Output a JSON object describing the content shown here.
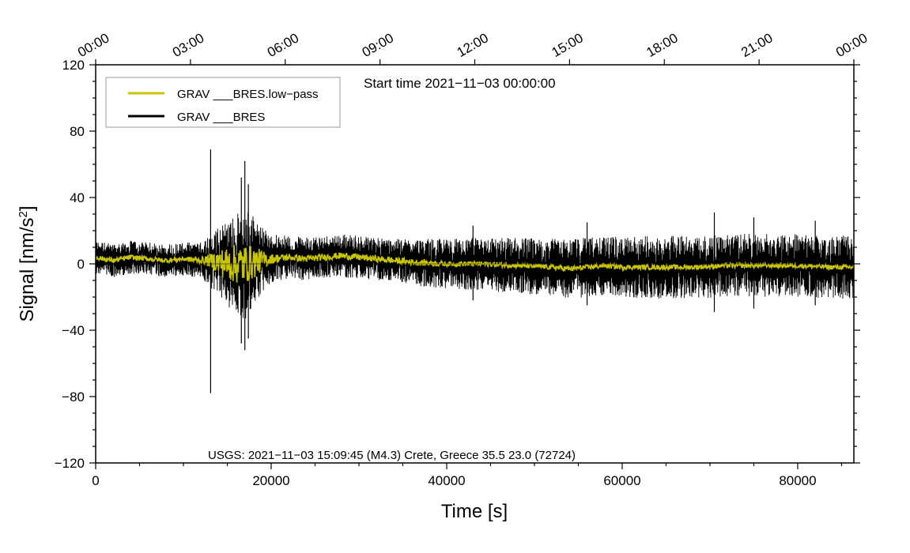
{
  "chart_data": {
    "type": "line",
    "xlabel": "Time [s]",
    "ylabel": "Signal [nm/s",
    "ylabel_superscript": "2",
    "ylabel_close": "]",
    "xlim": [
      0,
      86400
    ],
    "ylim": [
      -120,
      120
    ],
    "x_ticks": [
      "0",
      "20000",
      "40000",
      "60000",
      "80000"
    ],
    "x_tick_values": [
      0,
      20000,
      40000,
      60000,
      80000
    ],
    "x_minor_step": 5000,
    "y_ticks": [
      "120",
      "80",
      "40",
      "0",
      "−40",
      "−80",
      "−120"
    ],
    "y_tick_values": [
      120,
      80,
      40,
      0,
      -40,
      -80,
      -120
    ],
    "y_minor_step": 10,
    "top_ticks": [
      "00:00",
      "03:00",
      "06:00",
      "09:00",
      "12:00",
      "15:00",
      "18:00",
      "21:00",
      "00:00"
    ],
    "top_tick_values": [
      0,
      10800,
      21600,
      32400,
      43200,
      54000,
      64800,
      75600,
      86400
    ],
    "title": "Start time 2021−11−03 00:00:00",
    "annotation": "USGS: 2021−11−03 15:09:45 (M4.3) Crete, Greece 35.5 23.0 (72724)",
    "legend_position": "top-left",
    "series": [
      {
        "name": "GRAV ___BRES.low−pass",
        "color": "#c8c400",
        "envelope": {
          "x": [
            0,
            2000,
            4000,
            6000,
            8000,
            10000,
            12000,
            13000,
            14000,
            15000,
            16000,
            17000,
            18000,
            19000,
            20000,
            22000,
            24000,
            26000,
            28000,
            30000,
            32000,
            34000,
            36000,
            40000,
            44000,
            48000,
            52000,
            54000,
            56000,
            58000,
            60000,
            64000,
            68000,
            72000,
            76000,
            80000,
            84000,
            86400
          ],
          "center": [
            4,
            2,
            4,
            3,
            2,
            3,
            2,
            2,
            1,
            0,
            0,
            0,
            1,
            2,
            3,
            4,
            3,
            4,
            5,
            4,
            3,
            2,
            1,
            0,
            0,
            -1,
            -2,
            -3,
            -2,
            -1,
            -2,
            -2,
            -2,
            -1,
            -1,
            -1,
            -2,
            -2
          ],
          "amplitude": [
            1.5,
            1.5,
            1.5,
            1.5,
            1.5,
            1.5,
            2,
            4,
            8,
            10,
            12,
            12,
            10,
            6,
            3,
            2,
            2,
            2,
            2,
            2,
            2,
            2,
            2,
            1.5,
            1.5,
            1.5,
            1.5,
            1.5,
            1.5,
            1.5,
            1.5,
            1.5,
            1.5,
            1.5,
            1.5,
            1.5,
            1.5,
            1.5
          ]
        }
      },
      {
        "name": "GRAV ___BRES",
        "color": "#000000",
        "envelope": {
          "x": [
            0,
            2000,
            4000,
            6000,
            8000,
            10000,
            12000,
            13000,
            14000,
            15000,
            16000,
            17000,
            18000,
            19000,
            20000,
            22000,
            24000,
            26000,
            28000,
            30000,
            32000,
            34000,
            36000,
            40000,
            44000,
            48000,
            52000,
            54000,
            56000,
            58000,
            60000,
            64000,
            68000,
            72000,
            76000,
            80000,
            84000,
            86400
          ],
          "center": [
            4,
            2,
            4,
            3,
            2,
            3,
            2,
            2,
            1,
            0,
            0,
            0,
            1,
            2,
            3,
            4,
            3,
            4,
            5,
            4,
            3,
            2,
            1,
            0,
            0,
            -1,
            -2,
            -3,
            -2,
            -1,
            -2,
            -2,
            -2,
            -1,
            -1,
            -1,
            -2,
            -2
          ],
          "amplitude": [
            10,
            10,
            10,
            10,
            10,
            10,
            11,
            16,
            22,
            26,
            30,
            34,
            28,
            20,
            15,
            13,
            13,
            13,
            13,
            13,
            13,
            13,
            14,
            15,
            16,
            17,
            17,
            18,
            18,
            18,
            18,
            19,
            19,
            19,
            19,
            19,
            19,
            19
          ]
        },
        "spikes": [
          {
            "x": 13100,
            "max": 69,
            "min": -78
          },
          {
            "x": 17000,
            "max": 62,
            "min": -52
          },
          {
            "x": 16600,
            "max": 52,
            "min": -48
          },
          {
            "x": 17400,
            "max": 48,
            "min": -45
          },
          {
            "x": 70500,
            "max": 31,
            "min": -29
          },
          {
            "x": 75000,
            "max": 28,
            "min": -27
          },
          {
            "x": 43000,
            "max": 23,
            "min": -22
          },
          {
            "x": 56000,
            "max": 25,
            "min": -25
          },
          {
            "x": 82000,
            "max": 26,
            "min": -25
          }
        ]
      }
    ]
  }
}
